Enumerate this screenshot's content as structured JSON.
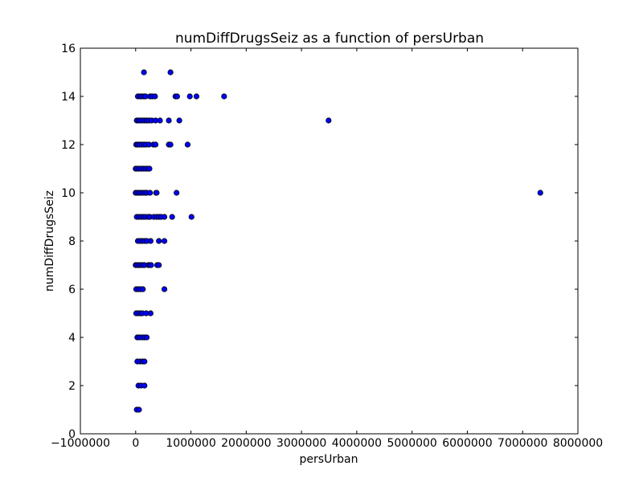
{
  "chart_data": {
    "type": "scatter",
    "title": "numDiffDrugsSeiz as a function of persUrban",
    "xlabel": "persUrban",
    "ylabel": "numDiffDrugsSeiz",
    "xlim": [
      -1000000,
      8000000
    ],
    "ylim": [
      0,
      16
    ],
    "xticks": [
      -1000000,
      0,
      1000000,
      2000000,
      3000000,
      4000000,
      5000000,
      6000000,
      7000000,
      8000000
    ],
    "xtick_labels": [
      "−1000000",
      "0",
      "1000000",
      "2000000",
      "3000000",
      "4000000",
      "5000000",
      "6000000",
      "7000000",
      "8000000"
    ],
    "yticks": [
      0,
      2,
      4,
      6,
      8,
      10,
      12,
      14,
      16
    ],
    "ytick_labels": [
      "0",
      "2",
      "4",
      "6",
      "8",
      "10",
      "12",
      "14",
      "16"
    ],
    "grid": false,
    "marker_color": "#0000ff",
    "marker_edge_color": "#000000",
    "points": [
      {
        "x": 150000,
        "y": 15
      },
      {
        "x": 630000,
        "y": 15
      },
      {
        "x": 40000,
        "y": 14
      },
      {
        "x": 80000,
        "y": 14
      },
      {
        "x": 110000,
        "y": 14
      },
      {
        "x": 150000,
        "y": 14
      },
      {
        "x": 180000,
        "y": 14
      },
      {
        "x": 260000,
        "y": 14
      },
      {
        "x": 300000,
        "y": 14
      },
      {
        "x": 350000,
        "y": 14
      },
      {
        "x": 720000,
        "y": 14
      },
      {
        "x": 750000,
        "y": 14
      },
      {
        "x": 980000,
        "y": 14
      },
      {
        "x": 1100000,
        "y": 14
      },
      {
        "x": 1600000,
        "y": 14
      },
      {
        "x": 20000,
        "y": 13
      },
      {
        "x": 50000,
        "y": 13
      },
      {
        "x": 80000,
        "y": 13
      },
      {
        "x": 120000,
        "y": 13
      },
      {
        "x": 160000,
        "y": 13
      },
      {
        "x": 200000,
        "y": 13
      },
      {
        "x": 240000,
        "y": 13
      },
      {
        "x": 290000,
        "y": 13
      },
      {
        "x": 360000,
        "y": 13
      },
      {
        "x": 440000,
        "y": 13
      },
      {
        "x": 600000,
        "y": 13
      },
      {
        "x": 790000,
        "y": 13
      },
      {
        "x": 3490000,
        "y": 13
      },
      {
        "x": 10000,
        "y": 12
      },
      {
        "x": 40000,
        "y": 12
      },
      {
        "x": 70000,
        "y": 12
      },
      {
        "x": 110000,
        "y": 12
      },
      {
        "x": 150000,
        "y": 12
      },
      {
        "x": 190000,
        "y": 12
      },
      {
        "x": 240000,
        "y": 12
      },
      {
        "x": 320000,
        "y": 12
      },
      {
        "x": 360000,
        "y": 12
      },
      {
        "x": 600000,
        "y": 12
      },
      {
        "x": 630000,
        "y": 12
      },
      {
        "x": 940000,
        "y": 12
      },
      {
        "x": 0,
        "y": 11
      },
      {
        "x": 30000,
        "y": 11
      },
      {
        "x": 60000,
        "y": 11
      },
      {
        "x": 100000,
        "y": 11
      },
      {
        "x": 140000,
        "y": 11
      },
      {
        "x": 180000,
        "y": 11
      },
      {
        "x": 220000,
        "y": 11
      },
      {
        "x": 250000,
        "y": 11
      },
      {
        "x": 0,
        "y": 10
      },
      {
        "x": 30000,
        "y": 10
      },
      {
        "x": 60000,
        "y": 10
      },
      {
        "x": 90000,
        "y": 10
      },
      {
        "x": 130000,
        "y": 10
      },
      {
        "x": 170000,
        "y": 10
      },
      {
        "x": 200000,
        "y": 10
      },
      {
        "x": 260000,
        "y": 10
      },
      {
        "x": 370000,
        "y": 10
      },
      {
        "x": 380000,
        "y": 10
      },
      {
        "x": 740000,
        "y": 10
      },
      {
        "x": 7320000,
        "y": 10
      },
      {
        "x": 20000,
        "y": 9
      },
      {
        "x": 60000,
        "y": 9
      },
      {
        "x": 100000,
        "y": 9
      },
      {
        "x": 140000,
        "y": 9
      },
      {
        "x": 180000,
        "y": 9
      },
      {
        "x": 230000,
        "y": 9
      },
      {
        "x": 260000,
        "y": 9
      },
      {
        "x": 330000,
        "y": 9
      },
      {
        "x": 380000,
        "y": 9
      },
      {
        "x": 420000,
        "y": 9
      },
      {
        "x": 460000,
        "y": 9
      },
      {
        "x": 520000,
        "y": 9
      },
      {
        "x": 660000,
        "y": 9
      },
      {
        "x": 1010000,
        "y": 9
      },
      {
        "x": 40000,
        "y": 8
      },
      {
        "x": 80000,
        "y": 8
      },
      {
        "x": 120000,
        "y": 8
      },
      {
        "x": 160000,
        "y": 8
      },
      {
        "x": 200000,
        "y": 8
      },
      {
        "x": 270000,
        "y": 8
      },
      {
        "x": 420000,
        "y": 8
      },
      {
        "x": 520000,
        "y": 8
      },
      {
        "x": 0,
        "y": 7
      },
      {
        "x": 30000,
        "y": 7
      },
      {
        "x": 60000,
        "y": 7
      },
      {
        "x": 90000,
        "y": 7
      },
      {
        "x": 130000,
        "y": 7
      },
      {
        "x": 160000,
        "y": 7
      },
      {
        "x": 230000,
        "y": 7
      },
      {
        "x": 260000,
        "y": 7
      },
      {
        "x": 280000,
        "y": 7
      },
      {
        "x": 390000,
        "y": 7
      },
      {
        "x": 420000,
        "y": 7
      },
      {
        "x": 10000,
        "y": 6
      },
      {
        "x": 50000,
        "y": 6
      },
      {
        "x": 90000,
        "y": 6
      },
      {
        "x": 130000,
        "y": 6
      },
      {
        "x": 520000,
        "y": 6
      },
      {
        "x": 10000,
        "y": 5
      },
      {
        "x": 50000,
        "y": 5
      },
      {
        "x": 90000,
        "y": 5
      },
      {
        "x": 120000,
        "y": 5
      },
      {
        "x": 190000,
        "y": 5
      },
      {
        "x": 270000,
        "y": 5
      },
      {
        "x": 30000,
        "y": 4
      },
      {
        "x": 70000,
        "y": 4
      },
      {
        "x": 120000,
        "y": 4
      },
      {
        "x": 160000,
        "y": 4
      },
      {
        "x": 200000,
        "y": 4
      },
      {
        "x": 30000,
        "y": 3
      },
      {
        "x": 80000,
        "y": 3
      },
      {
        "x": 130000,
        "y": 3
      },
      {
        "x": 160000,
        "y": 3
      },
      {
        "x": 50000,
        "y": 2
      },
      {
        "x": 100000,
        "y": 2
      },
      {
        "x": 160000,
        "y": 2
      },
      {
        "x": 20000,
        "y": 1
      },
      {
        "x": 60000,
        "y": 1
      }
    ]
  }
}
